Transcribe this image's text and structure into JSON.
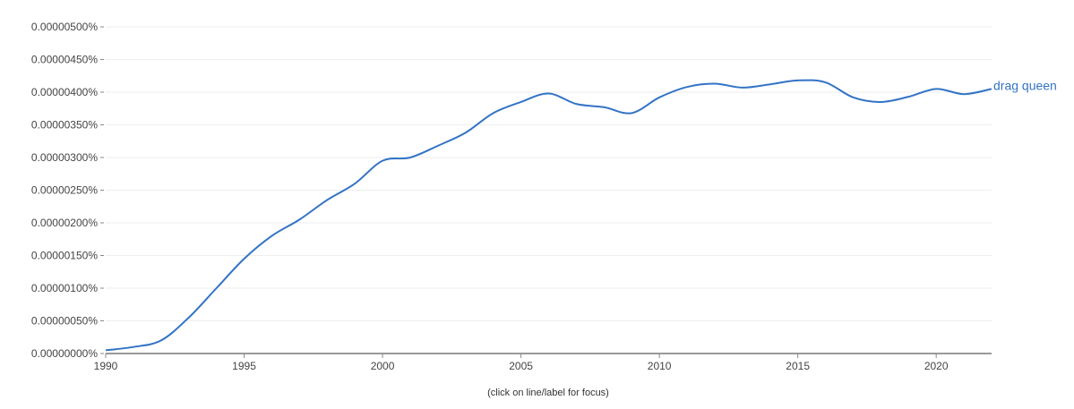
{
  "chart_data": {
    "type": "line",
    "x": [
      1990,
      1991,
      1992,
      1993,
      1994,
      1995,
      1996,
      1997,
      1998,
      1999,
      2000,
      2001,
      2002,
      2003,
      2004,
      2005,
      2006,
      2007,
      2008,
      2009,
      2010,
      2011,
      2012,
      2013,
      2014,
      2015,
      2016,
      2017,
      2018,
      2019,
      2020,
      2021,
      2022
    ],
    "series": [
      {
        "name": "drag queen",
        "color": "#3273c5",
        "values": [
          5e-10,
          1e-09,
          2e-09,
          5.5e-09,
          1e-08,
          1.45e-08,
          1.8e-08,
          2.05e-08,
          2.35e-08,
          2.6e-08,
          2.95e-08,
          3e-08,
          3.18e-08,
          3.38e-08,
          3.68e-08,
          3.85e-08,
          3.98e-08,
          3.82e-08,
          3.77e-08,
          3.68e-08,
          3.92e-08,
          4.08e-08,
          4.13e-08,
          4.07e-08,
          4.12e-08,
          4.18e-08,
          4.15e-08,
          3.92e-08,
          3.85e-08,
          3.93e-08,
          4.05e-08,
          3.97e-08,
          4.05e-08
        ]
      }
    ],
    "ylim": [
      0,
      5e-08
    ],
    "xlim": [
      1990,
      2022
    ],
    "y_ticks": [
      0,
      5e-09,
      1e-08,
      1.5e-08,
      2e-08,
      2.5e-08,
      3e-08,
      3.5e-08,
      4e-08,
      4.5e-08,
      5e-08
    ],
    "y_tick_labels": [
      "0.00000000%",
      "0.00000050%",
      "0.00000100%",
      "0.00000150%",
      "0.00000200%",
      "0.00000250%",
      "0.00000300%",
      "0.00000350%",
      "0.00000400%",
      "0.00000450%",
      "0.00000500%"
    ],
    "x_ticks": [
      1990,
      1995,
      2000,
      2005,
      2010,
      2015,
      2020
    ],
    "x_tick_labels": [
      "1990",
      "1995",
      "2000",
      "2005",
      "2010",
      "2015",
      "2020"
    ],
    "grid": true,
    "legend": "inline-right",
    "footer_note": "(click on line/label for focus)",
    "axis_color": "#333333",
    "grid_color": "#eeeeee"
  }
}
